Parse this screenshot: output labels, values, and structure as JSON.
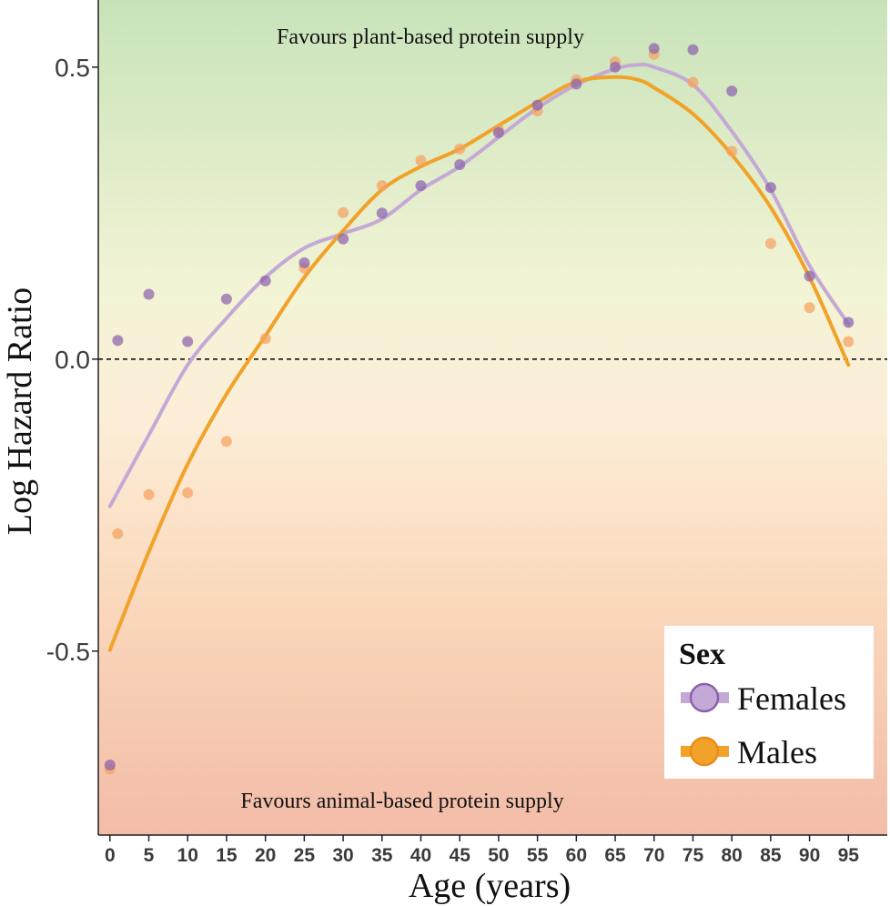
{
  "chart_data": {
    "type": "scatter",
    "xlabel": "Age (years)",
    "ylabel": "Log Hazard Ratio",
    "xlim": [
      -1.5,
      100
    ],
    "ylim": [
      -0.815,
      0.615
    ],
    "x_ticks": [
      0,
      5,
      10,
      15,
      20,
      25,
      30,
      35,
      40,
      45,
      50,
      55,
      60,
      65,
      70,
      75,
      80,
      85,
      90,
      95
    ],
    "y_ticks": [
      {
        "value": -0.5,
        "label": "-0.5"
      },
      {
        "value": 0.0,
        "label": "0.0"
      },
      {
        "value": 0.5,
        "label": "0.5"
      }
    ],
    "reference_line": {
      "y": 0,
      "style": "dashed"
    },
    "background": {
      "top_color": "#c8e3b9",
      "middle_top": "#f3f4d6",
      "middle_bottom": "#fdeed8",
      "bottom_color": "#f3bca8"
    },
    "annotations": {
      "top": "Favours plant-based protein supply",
      "bottom": "Favours animal-based protein supply"
    },
    "legend": {
      "title": "Sex",
      "position": "bottom-right"
    },
    "series": [
      {
        "name": "Females",
        "color": "#c4a8d6",
        "point_color": "#8b62ad",
        "points": [
          [
            0,
            -0.695
          ],
          [
            1,
            0.032
          ],
          [
            5,
            0.111
          ],
          [
            10,
            0.03
          ],
          [
            15,
            0.103
          ],
          [
            20,
            0.134
          ],
          [
            25,
            0.165
          ],
          [
            30,
            0.206
          ],
          [
            35,
            0.25
          ],
          [
            40,
            0.297
          ],
          [
            45,
            0.333
          ],
          [
            50,
            0.388
          ],
          [
            55,
            0.435
          ],
          [
            60,
            0.471
          ],
          [
            65,
            0.5
          ],
          [
            70,
            0.532
          ],
          [
            75,
            0.53
          ],
          [
            80,
            0.459
          ],
          [
            85,
            0.294
          ],
          [
            90,
            0.142
          ],
          [
            95,
            0.063
          ]
        ],
        "curve": [
          [
            0,
            -0.252
          ],
          [
            5,
            -0.13
          ],
          [
            10,
            -0.01
          ],
          [
            15,
            0.07
          ],
          [
            20,
            0.14
          ],
          [
            25,
            0.19
          ],
          [
            30,
            0.215
          ],
          [
            35,
            0.24
          ],
          [
            40,
            0.29
          ],
          [
            45,
            0.33
          ],
          [
            50,
            0.38
          ],
          [
            55,
            0.43
          ],
          [
            60,
            0.47
          ],
          [
            65,
            0.497
          ],
          [
            68,
            0.504
          ],
          [
            70,
            0.5
          ],
          [
            75,
            0.47
          ],
          [
            80,
            0.39
          ],
          [
            85,
            0.29
          ],
          [
            90,
            0.16
          ],
          [
            95,
            0.06
          ]
        ]
      },
      {
        "name": "Males",
        "color": "#f0a229",
        "point_color": "#f5a15f",
        "points": [
          [
            0,
            -0.702
          ],
          [
            1,
            -0.299
          ],
          [
            5,
            -0.232
          ],
          [
            10,
            -0.229
          ],
          [
            15,
            -0.141
          ],
          [
            20,
            0.035
          ],
          [
            25,
            0.156
          ],
          [
            30,
            0.251
          ],
          [
            35,
            0.297
          ],
          [
            40,
            0.34
          ],
          [
            45,
            0.36
          ],
          [
            50,
            0.393
          ],
          [
            55,
            0.425
          ],
          [
            60,
            0.478
          ],
          [
            65,
            0.509
          ],
          [
            70,
            0.522
          ],
          [
            75,
            0.474
          ],
          [
            80,
            0.356
          ],
          [
            85,
            0.198
          ],
          [
            90,
            0.088
          ],
          [
            95,
            0.03
          ]
        ],
        "curve": [
          [
            0,
            -0.498
          ],
          [
            5,
            -0.33
          ],
          [
            10,
            -0.18
          ],
          [
            15,
            -0.06
          ],
          [
            20,
            0.04
          ],
          [
            25,
            0.14
          ],
          [
            30,
            0.22
          ],
          [
            35,
            0.29
          ],
          [
            40,
            0.33
          ],
          [
            45,
            0.36
          ],
          [
            50,
            0.4
          ],
          [
            55,
            0.44
          ],
          [
            60,
            0.475
          ],
          [
            65,
            0.483
          ],
          [
            68,
            0.478
          ],
          [
            70,
            0.465
          ],
          [
            75,
            0.42
          ],
          [
            80,
            0.35
          ],
          [
            85,
            0.26
          ],
          [
            90,
            0.14
          ],
          [
            95,
            -0.01
          ]
        ]
      }
    ]
  }
}
